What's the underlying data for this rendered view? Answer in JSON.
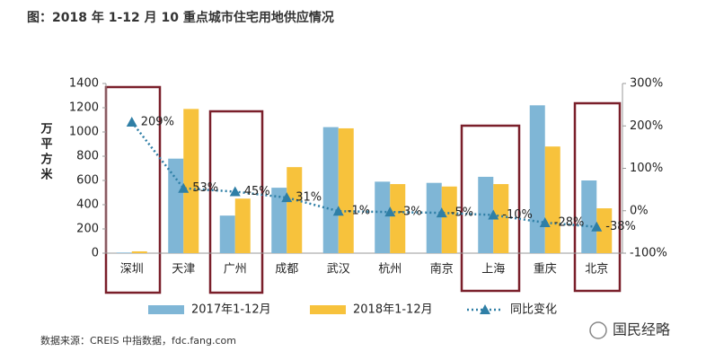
{
  "chart_data": {
    "type": "bar",
    "title": "图：2018 年 1-12 月 10 重点城市住宅用地供应情况",
    "y_label": "万平方米",
    "categories": [
      "深圳",
      "天津",
      "广州",
      "成都",
      "武汉",
      "杭州",
      "南京",
      "上海",
      "重庆",
      "北京"
    ],
    "series": [
      {
        "name": "2017年1-12月",
        "color": "#7fb6d6",
        "values": [
          5,
          780,
          310,
          540,
          1040,
          590,
          580,
          630,
          1220,
          600
        ]
      },
      {
        "name": "2018年1-12月",
        "color": "#f7c23c",
        "values": [
          15,
          1190,
          450,
          710,
          1030,
          570,
          550,
          570,
          880,
          370
        ]
      },
      {
        "name": "同比变化",
        "type": "line",
        "axis": "y2",
        "color": "#2f7fa6",
        "values": [
          209,
          53,
          45,
          31,
          -1,
          -3,
          -5,
          -10,
          -28,
          -38
        ],
        "value_labels": [
          "209%",
          "53%",
          "45%",
          "31%",
          "-1%",
          "-3%",
          "-5%",
          "-10%",
          "-28%",
          "-38%"
        ]
      }
    ],
    "ylim": [
      0,
      1400
    ],
    "yticks": [
      0,
      200,
      400,
      600,
      800,
      1000,
      1200,
      1400
    ],
    "y2lim": [
      -100,
      300
    ],
    "y2ticks": [
      {
        "value": -100,
        "label": "-100%"
      },
      {
        "value": 0,
        "label": "0%"
      },
      {
        "value": 100,
        "label": "100%"
      },
      {
        "value": 200,
        "label": "200%"
      },
      {
        "value": 300,
        "label": "300%"
      }
    ],
    "grid": false,
    "legend": "bottom",
    "source": "数据来源：CREIS 中指数据，fdc.fang.com",
    "watermark": "国民经略"
  }
}
